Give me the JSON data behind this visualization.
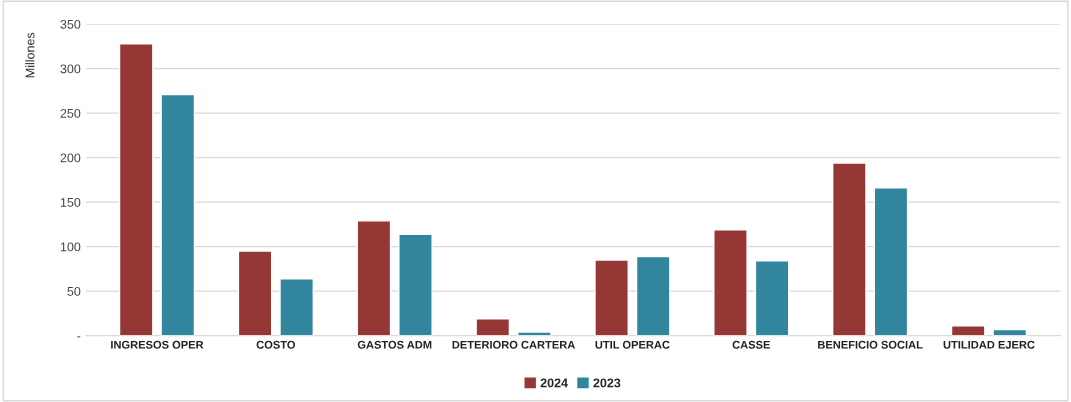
{
  "chart_data": {
    "type": "bar",
    "ylabel": "Millones",
    "categories": [
      "INGRESOS OPER",
      "COSTO",
      "GASTOS ADM",
      "DETERIORO CARTERA",
      "UTIL OPERAC",
      "CASSE",
      "BENEFICIO SOCIAL",
      "UTILIDAD EJERC"
    ],
    "series": [
      {
        "name": "2024",
        "color": "#953735",
        "values": [
          328,
          95,
          129,
          19,
          85,
          119,
          194,
          11
        ]
      },
      {
        "name": "2023",
        "color": "#31859c",
        "values": [
          271,
          64,
          114,
          4,
          89,
          84,
          166,
          7
        ]
      }
    ],
    "ylim": [
      0,
      350
    ],
    "yticks": [
      {
        "value": 0,
        "label": "-"
      },
      50,
      100,
      150,
      200,
      250,
      300,
      350
    ],
    "grid": "y",
    "legend": "bottom"
  }
}
